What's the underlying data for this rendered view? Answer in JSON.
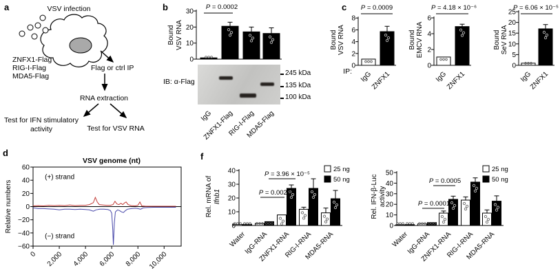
{
  "background": "#ffffff",
  "panel_labels": {
    "a": "a",
    "b": "b",
    "c": "c",
    "d": "d",
    "f": "f"
  },
  "panel_a": {
    "title": "VSV infection",
    "constructs": [
      "ZNFX1-Flag",
      "RIG-I-Flag",
      "MDA5-Flag"
    ],
    "ip_step": "Flag or ctrl IP",
    "rna_step": "RNA extraction",
    "test_ifn_line1": "Test for IFN stimulatory",
    "test_ifn_line2": "activity",
    "test_vsv": "Test for VSV RNA"
  },
  "panel_b": {
    "ib_label": "IB: α-Flag",
    "markers": [
      "245 kDa",
      "135 kDa",
      "100 kDa"
    ]
  },
  "chart_data": [
    {
      "id": "b-bound-vsv-rna",
      "type": "bar",
      "ylabel_lines": [
        "Bound",
        "VSV RNA"
      ],
      "categories": [
        "IgG",
        "ZNFX1-Flag",
        "RIG-I-Flag",
        "MDA5-Flag"
      ],
      "values": [
        0.8,
        20.5,
        17,
        16
      ],
      "errors": [
        0.2,
        2.5,
        3,
        3.5
      ],
      "colors": [
        "black",
        "black",
        "black",
        "black"
      ],
      "ylim": [
        0,
        30
      ],
      "yticks": [
        0,
        10,
        20,
        30
      ],
      "pvalues": [
        {
          "text": "P = 0.0002",
          "compare": [
            "IgG",
            "ZNFX1-Flag"
          ]
        }
      ]
    },
    {
      "id": "c-bound-vsv-rna",
      "type": "bar",
      "ylabel_lines": [
        "Bound",
        "VSV RNA"
      ],
      "extra_label": "IP:",
      "categories": [
        "IgG",
        "ZNFX1"
      ],
      "values": [
        1.05,
        5.7
      ],
      "errors": [
        0.15,
        0.9
      ],
      "colors": [
        "white",
        "black"
      ],
      "ylim": [
        0,
        8
      ],
      "yticks": [
        0,
        2,
        4,
        6,
        8
      ],
      "pvalues": [
        {
          "text": "P = 0.0009",
          "compare": [
            "IgG",
            "ZNFX1"
          ]
        }
      ]
    },
    {
      "id": "c-bound-emcv-rna",
      "type": "bar",
      "ylabel_lines": [
        "Bound",
        "EMCV RNA"
      ],
      "categories": [
        "IgG",
        "ZNFX1"
      ],
      "values": [
        1.05,
        4.9
      ],
      "errors": [
        0.1,
        0.3
      ],
      "colors": [
        "white",
        "black"
      ],
      "ylim": [
        0,
        6
      ],
      "yticks": [
        0,
        2,
        4,
        6
      ],
      "pvalues": [
        {
          "text": "P = 4.18 × 10⁻⁶",
          "compare": [
            "IgG",
            "ZNFX1"
          ]
        }
      ]
    },
    {
      "id": "c-bound-sev-rna",
      "type": "bar",
      "ylabel_lines": [
        "Bound",
        "SeV RNA"
      ],
      "categories": [
        "IgG",
        "ZNFX1"
      ],
      "values": [
        1.0,
        17
      ],
      "errors": [
        0.15,
        2
      ],
      "colors": [
        "white",
        "black"
      ],
      "ylim": [
        0,
        25
      ],
      "yticks": [
        0,
        5,
        10,
        15,
        20,
        25
      ],
      "pvalues": [
        {
          "text": "P = 6.06 × 10⁻⁵",
          "compare": [
            "IgG",
            "ZNFX1"
          ]
        }
      ]
    },
    {
      "id": "d-vsv-genome",
      "type": "line",
      "title": "VSV genome (nt)",
      "ylabel": "Relative numbers",
      "xlim": [
        0,
        11300
      ],
      "ylim": [
        -60,
        60
      ],
      "xticks": [
        0,
        2000,
        4000,
        6000,
        8000,
        10000
      ],
      "xtick_labels": [
        "0",
        "2,000",
        "4,000",
        "6,000",
        "8,000",
        "10,000"
      ],
      "yticks": [
        60,
        40,
        20,
        0,
        -20,
        -40,
        -60
      ],
      "ytick_labels": [
        "60",
        "40",
        "20",
        "0",
        "−20",
        "−40",
        "−60"
      ],
      "series": [
        {
          "name": "(+) strand",
          "color": "#c23b36",
          "label_x": 900,
          "label_y": 45,
          "points": [
            [
              0,
              1
            ],
            [
              400,
              1.5
            ],
            [
              800,
              1
            ],
            [
              1200,
              2
            ],
            [
              1600,
              1.5
            ],
            [
              2000,
              2
            ],
            [
              2400,
              1.5
            ],
            [
              2800,
              2.5
            ],
            [
              3200,
              1.5
            ],
            [
              3600,
              2
            ],
            [
              4000,
              2
            ],
            [
              4300,
              3
            ],
            [
              4600,
              6
            ],
            [
              4750,
              14
            ],
            [
              4900,
              7
            ],
            [
              5050,
              3
            ],
            [
              5300,
              2.5
            ],
            [
              5600,
              2
            ],
            [
              5900,
              2
            ],
            [
              6100,
              3
            ],
            [
              6250,
              8
            ],
            [
              6400,
              4
            ],
            [
              6550,
              3
            ],
            [
              6700,
              5
            ],
            [
              6850,
              3
            ],
            [
              7000,
              6
            ],
            [
              7100,
              7
            ],
            [
              7250,
              3
            ],
            [
              7500,
              1.5
            ],
            [
              7800,
              1
            ],
            [
              8000,
              2
            ],
            [
              8150,
              7
            ],
            [
              8300,
              1
            ],
            [
              8600,
              0.5
            ],
            [
              9200,
              0.5
            ],
            [
              9800,
              0.5
            ],
            [
              10400,
              0.5
            ],
            [
              10900,
              0.5
            ]
          ]
        },
        {
          "name": "(−) strand",
          "color": "#4545a8",
          "label_x": 900,
          "label_y": -45,
          "points": [
            [
              0,
              -2
            ],
            [
              400,
              -3
            ],
            [
              800,
              -3
            ],
            [
              1200,
              -3.5
            ],
            [
              1600,
              -4
            ],
            [
              2000,
              -5
            ],
            [
              2400,
              -4
            ],
            [
              2800,
              -4
            ],
            [
              3200,
              -4.5
            ],
            [
              3600,
              -4
            ],
            [
              4000,
              -4.5
            ],
            [
              4300,
              -5
            ],
            [
              4600,
              -7
            ],
            [
              4800,
              -5
            ],
            [
              5100,
              -4
            ],
            [
              5400,
              -4
            ],
            [
              5700,
              -4.5
            ],
            [
              5900,
              -6
            ],
            [
              6000,
              -10
            ],
            [
              6080,
              -35
            ],
            [
              6130,
              -58
            ],
            [
              6200,
              -25
            ],
            [
              6280,
              -8
            ],
            [
              6450,
              -5
            ],
            [
              6600,
              -6
            ],
            [
              6750,
              -8
            ],
            [
              6900,
              -9
            ],
            [
              7050,
              -6
            ],
            [
              7200,
              -4
            ],
            [
              7500,
              -3
            ],
            [
              7800,
              -2.5
            ],
            [
              8000,
              -3
            ],
            [
              8200,
              -4
            ],
            [
              8400,
              -2
            ],
            [
              8700,
              -1.5
            ],
            [
              9200,
              -1
            ],
            [
              9800,
              -1
            ],
            [
              10400,
              -1
            ],
            [
              10900,
              -1
            ]
          ]
        }
      ]
    },
    {
      "id": "f-ifnb1",
      "type": "bar",
      "ylabel_lines": [
        "Rel. mRNA of",
        "Ifnb1"
      ],
      "categories": [
        "Water",
        "IgG-RNA",
        "ZNFX1-RNA",
        "RIG-I-RNA",
        "MDA5-RNA"
      ],
      "series": [
        {
          "name": "25 ng",
          "color": "white",
          "values": [
            0.7,
            1.5,
            7.7,
            11.8,
            9.2
          ],
          "errors": [
            0.2,
            0.3,
            1.0,
            1.5,
            3.5
          ]
        },
        {
          "name": "50 ng",
          "color": "black",
          "values": [
            0.9,
            2.8,
            27,
            27,
            19.5
          ],
          "errors": [
            0.2,
            0.5,
            2.5,
            7,
            6
          ]
        }
      ],
      "ylim": [
        0,
        40
      ],
      "yticks": [
        0,
        10,
        20,
        30,
        40
      ],
      "legend": [
        "25 ng",
        "50 ng"
      ],
      "pvalues": [
        {
          "text": "P = 0.0026",
          "compare": [
            "IgG-RNA",
            "ZNFX1-RNA"
          ],
          "series": "25 ng"
        },
        {
          "text": "P = 3.96 × 10⁻⁵",
          "compare": [
            "IgG-RNA",
            "ZNFX1-RNA"
          ],
          "series": "50 ng"
        }
      ]
    },
    {
      "id": "f-ifnb-luc",
      "type": "bar",
      "ylabel_lines": [
        "Rel. IFN-β-Luc",
        "activity"
      ],
      "categories": [
        "Water",
        "IgG-RNA",
        "ZNFX1-RNA",
        "RIG-I-RNA",
        "MDA5-RNA"
      ],
      "series": [
        {
          "name": "25 ng",
          "color": "white",
          "values": [
            0.7,
            1.5,
            11.7,
            24,
            11.7
          ],
          "errors": [
            0.2,
            0.3,
            2,
            3,
            3
          ]
        },
        {
          "name": "50 ng",
          "color": "black",
          "values": [
            0.9,
            2.8,
            24.7,
            41,
            23
          ],
          "errors": [
            0.2,
            0.4,
            3,
            4,
            5
          ]
        }
      ],
      "ylim": [
        0,
        50
      ],
      "yticks": [
        0,
        10,
        20,
        30,
        40,
        50
      ],
      "legend": [
        "25 ng",
        "50 ng"
      ],
      "pvalues": [
        {
          "text": "P = 0.0001",
          "compare": [
            "IgG-RNA",
            "ZNFX1-RNA"
          ],
          "series": "25 ng"
        },
        {
          "text": "P = 0.0005",
          "compare": [
            "IgG-RNA",
            "ZNFX1-RNA"
          ],
          "series": "50 ng"
        }
      ]
    }
  ]
}
